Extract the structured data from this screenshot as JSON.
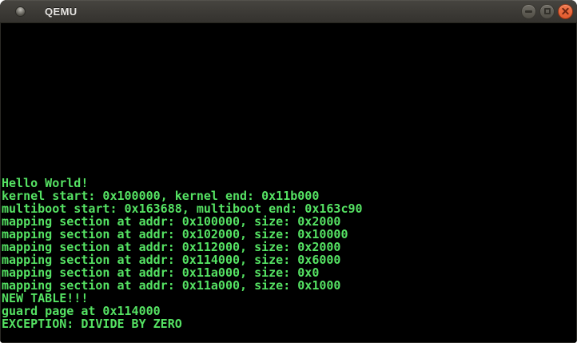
{
  "window": {
    "title": "QEMU",
    "controls": {
      "minimize_label": "Minimize",
      "maximize_label": "Maximize",
      "close_label": "Close"
    }
  },
  "theme": {
    "titlebar_bg": "#3c3a36",
    "close_button": "#e25a2d",
    "terminal_fg": "#55e263",
    "terminal_bg": "#000000"
  },
  "terminal": {
    "lines": [
      "Hello World!",
      "kernel start: 0x100000, kernel end: 0x11b000",
      "multiboot start: 0x163688, multiboot end: 0x163c90",
      "mapping section at addr: 0x100000, size: 0x2000",
      "mapping section at addr: 0x102000, size: 0x10000",
      "mapping section at addr: 0x112000, size: 0x2000",
      "mapping section at addr: 0x114000, size: 0x6000",
      "mapping section at addr: 0x11a000, size: 0x0",
      "mapping section at addr: 0x11a000, size: 0x1000",
      "NEW TABLE!!!",
      "guard page at 0x114000",
      "EXCEPTION: DIVIDE BY ZERO"
    ]
  }
}
